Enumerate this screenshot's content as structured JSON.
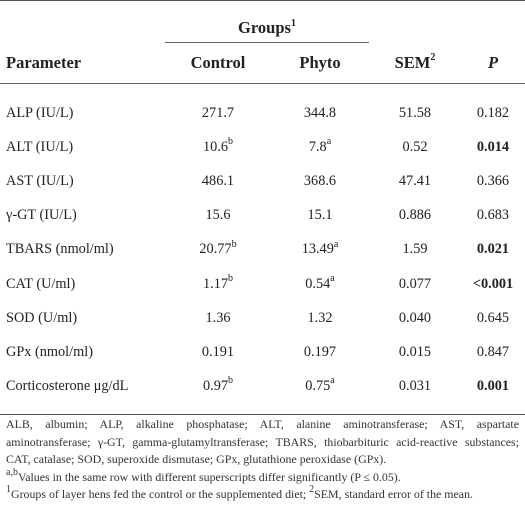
{
  "table": {
    "groups_label": "Groups",
    "groups_sup": "1",
    "headers": {
      "parameter": "Parameter",
      "control": "Control",
      "phyto": "Phyto",
      "sem": "SEM",
      "sem_sup": "2",
      "p": "P"
    },
    "rows": [
      {
        "parameter": "ALP (IU/L)",
        "control": "271.7",
        "control_sup": "",
        "phyto": "344.8",
        "phyto_sup": "",
        "sem": "51.58",
        "p": "0.182",
        "p_bold": false
      },
      {
        "parameter": "ALT (IU/L)",
        "control": "10.6",
        "control_sup": "b",
        "phyto": "7.8",
        "phyto_sup": "a",
        "sem": "0.52",
        "p": "0.014",
        "p_bold": true
      },
      {
        "parameter": "AST (IU/L)",
        "control": "486.1",
        "control_sup": "",
        "phyto": "368.6",
        "phyto_sup": "",
        "sem": "47.41",
        "p": "0.366",
        "p_bold": false
      },
      {
        "parameter": "γ-GT (IU/L)",
        "control": "15.6",
        "control_sup": "",
        "phyto": "15.1",
        "phyto_sup": "",
        "sem": "0.886",
        "p": "0.683",
        "p_bold": false
      },
      {
        "parameter": "TBARS (nmol/ml)",
        "control": "20.77",
        "control_sup": "b",
        "phyto": "13.49",
        "phyto_sup": "a",
        "sem": "1.59",
        "p": "0.021",
        "p_bold": true
      },
      {
        "parameter": "CAT (U/ml)",
        "control": "1.17",
        "control_sup": "b",
        "phyto": "0.54",
        "phyto_sup": "a",
        "sem": "0.077",
        "p": "<0.001",
        "p_bold": true
      },
      {
        "parameter": "SOD (U/ml)",
        "control": "1.36",
        "control_sup": "",
        "phyto": "1.32",
        "phyto_sup": "",
        "sem": "0.040",
        "p": "0.645",
        "p_bold": false
      },
      {
        "parameter": "GPx (nmol/ml)",
        "control": "0.191",
        "control_sup": "",
        "phyto": "0.197",
        "phyto_sup": "",
        "sem": "0.015",
        "p": "0.847",
        "p_bold": false
      },
      {
        "parameter": "Corticosterone μg/dL",
        "control": "0.97",
        "control_sup": "b",
        "phyto": "0.75",
        "phyto_sup": "a",
        "sem": "0.031",
        "p": "0.001",
        "p_bold": true
      }
    ]
  },
  "footnotes": {
    "abbreviations": "ALB, albumin; ALP, alkaline phosphatase; ALT, alanine aminotransferase; AST, aspartate aminotransferase; γ-GT, gamma-glutamyltransferase; TBARS, thiobarbituric acid-reactive substances; CAT, catalase; SOD, superoxide dismutase; GPx, glutathione peroxidase (GPx).",
    "note_ab_sup": "a,b",
    "note_ab": "Values in the same row with different superscripts differ significantly (P ≤ 0.05).",
    "note_1_sup": "1",
    "note_1": "Groups of layer hens fed the control or the supplemented diet; ",
    "note_2_sup": "2",
    "note_2": "SEM, standard error of the mean."
  }
}
